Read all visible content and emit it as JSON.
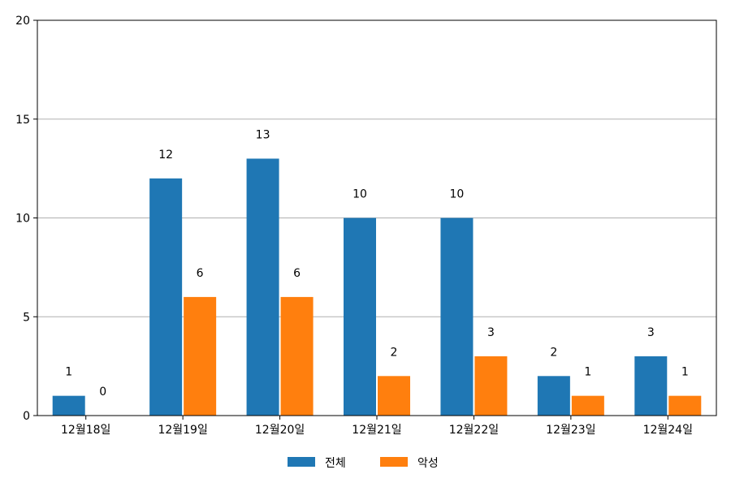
{
  "chart_data": {
    "type": "bar",
    "categories": [
      "12월18일",
      "12월19일",
      "12월20일",
      "12월21일",
      "12월22일",
      "12월23일",
      "12월24일"
    ],
    "series": [
      {
        "name": "전체",
        "values": [
          1,
          12,
          13,
          10,
          10,
          2,
          3
        ],
        "color": "#1f77b4"
      },
      {
        "name": "악성",
        "values": [
          0,
          6,
          6,
          2,
          3,
          1,
          1
        ],
        "color": "#ff7f0e"
      }
    ],
    "ylim": [
      0,
      20
    ],
    "yticks": [
      0,
      5,
      10,
      15,
      20
    ],
    "grid": true,
    "legend_position": "bottom-center",
    "show_value_labels": true
  }
}
